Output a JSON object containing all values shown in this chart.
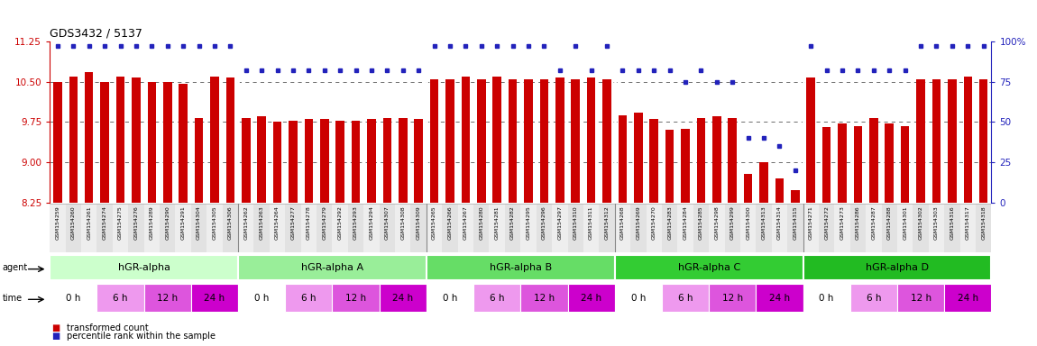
{
  "title": "GDS3432 / 5137",
  "ylim_left": [
    8.25,
    11.25
  ],
  "ylim_right": [
    0,
    100
  ],
  "yticks_left": [
    8.25,
    9.0,
    9.75,
    10.5,
    11.25
  ],
  "yticks_right": [
    0,
    25,
    50,
    75,
    100
  ],
  "samples": [
    "GSM154259",
    "GSM154260",
    "GSM154261",
    "GSM154274",
    "GSM154275",
    "GSM154276",
    "GSM154289",
    "GSM154290",
    "GSM154291",
    "GSM154304",
    "GSM154305",
    "GSM154306",
    "GSM154262",
    "GSM154263",
    "GSM154264",
    "GSM154277",
    "GSM154278",
    "GSM154279",
    "GSM154292",
    "GSM154293",
    "GSM154294",
    "GSM154307",
    "GSM154308",
    "GSM154309",
    "GSM154265",
    "GSM154266",
    "GSM154267",
    "GSM154280",
    "GSM154281",
    "GSM154282",
    "GSM154295",
    "GSM154296",
    "GSM154297",
    "GSM154310",
    "GSM154311",
    "GSM154312",
    "GSM154268",
    "GSM154269",
    "GSM154270",
    "GSM154283",
    "GSM154284",
    "GSM154285",
    "GSM154298",
    "GSM154299",
    "GSM154300",
    "GSM154313",
    "GSM154314",
    "GSM154315",
    "GSM154271",
    "GSM154272",
    "GSM154273",
    "GSM154286",
    "GSM154287",
    "GSM154288",
    "GSM154301",
    "GSM154302",
    "GSM154303",
    "GSM154316",
    "GSM154317",
    "GSM154318"
  ],
  "bar_values": [
    10.5,
    10.6,
    10.68,
    10.5,
    10.6,
    10.58,
    10.5,
    10.5,
    10.47,
    9.82,
    10.6,
    10.58,
    9.82,
    9.85,
    9.75,
    9.78,
    9.8,
    9.8,
    9.78,
    9.78,
    9.8,
    9.82,
    9.82,
    9.8,
    10.55,
    10.55,
    10.6,
    10.55,
    10.6,
    10.55,
    10.55,
    10.55,
    10.58,
    10.55,
    10.58,
    10.55,
    9.88,
    9.92,
    9.8,
    9.6,
    9.63,
    9.82,
    9.85,
    9.82,
    8.78,
    9.0,
    8.7,
    8.48,
    10.58,
    9.65,
    9.72,
    9.68,
    9.82,
    9.72,
    9.68,
    10.55,
    10.55,
    10.55,
    10.6,
    10.55
  ],
  "percentile_values": [
    97,
    97,
    97,
    97,
    97,
    97,
    97,
    97,
    97,
    97,
    97,
    97,
    82,
    82,
    82,
    82,
    82,
    82,
    82,
    82,
    82,
    82,
    82,
    82,
    97,
    97,
    97,
    97,
    97,
    97,
    97,
    97,
    82,
    97,
    82,
    97,
    82,
    82,
    82,
    82,
    75,
    82,
    75,
    75,
    40,
    40,
    35,
    20,
    97,
    82,
    82,
    82,
    82,
    82,
    82,
    97,
    97,
    97,
    97,
    97
  ],
  "agents": [
    {
      "name": "hGR-alpha",
      "start": 0,
      "end": 12,
      "color": "#ccffcc"
    },
    {
      "name": "hGR-alpha A",
      "start": 12,
      "end": 24,
      "color": "#99ee99"
    },
    {
      "name": "hGR-alpha B",
      "start": 24,
      "end": 36,
      "color": "#66dd66"
    },
    {
      "name": "hGR-alpha C",
      "start": 36,
      "end": 48,
      "color": "#33cc33"
    },
    {
      "name": "hGR-alpha D",
      "start": 48,
      "end": 60,
      "color": "#22bb22"
    }
  ],
  "time_labels": [
    "0 h",
    "6 h",
    "12 h",
    "24 h"
  ],
  "time_colors": [
    "#ffffff",
    "#ee99ee",
    "#dd55dd",
    "#cc00cc"
  ],
  "bar_color": "#cc0000",
  "dot_color": "#2222bb",
  "bg_color": "#ffffff",
  "tick_label_color": "#cc0000",
  "right_axis_color": "#2222bb",
  "grid_lines": [
    9.0,
    9.75,
    10.5
  ],
  "ybase": 8.25
}
